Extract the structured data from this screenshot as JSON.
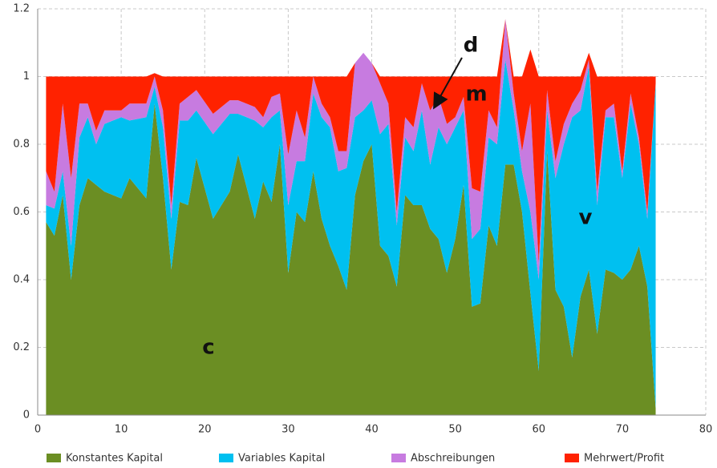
{
  "chart_data": {
    "type": "stacked_area",
    "x": [
      1,
      2,
      3,
      4,
      5,
      6,
      7,
      8,
      10,
      11,
      13,
      14,
      15,
      16,
      17,
      18,
      19,
      21,
      23,
      24,
      26,
      27,
      28,
      29,
      30,
      31,
      32,
      33,
      34,
      35,
      36,
      37,
      38,
      39,
      40,
      41,
      42,
      43,
      44,
      45,
      46,
      47,
      48,
      49,
      50,
      51,
      52,
      53,
      54,
      55,
      56,
      57,
      58,
      59,
      60,
      61,
      62,
      63,
      64,
      65,
      66,
      67,
      68,
      69,
      70,
      71,
      72,
      73,
      74
    ],
    "series": [
      {
        "name": "Konstantes Kapital",
        "color": "#6b8e23",
        "values": [
          0.57,
          0.53,
          0.65,
          0.4,
          0.62,
          0.7,
          0.68,
          0.66,
          0.64,
          0.7,
          0.64,
          0.92,
          0.7,
          0.43,
          0.63,
          0.62,
          0.76,
          0.58,
          0.66,
          0.77,
          0.58,
          0.69,
          0.63,
          0.8,
          0.42,
          0.6,
          0.57,
          0.72,
          0.58,
          0.5,
          0.44,
          0.37,
          0.65,
          0.75,
          0.8,
          0.5,
          0.47,
          0.38,
          0.65,
          0.62,
          0.62,
          0.55,
          0.52,
          0.42,
          0.52,
          0.68,
          0.32,
          0.33,
          0.56,
          0.5,
          0.74,
          0.74,
          0.6,
          0.36,
          0.13,
          0.78,
          0.37,
          0.32,
          0.17,
          0.35,
          0.43,
          0.24,
          0.43,
          0.42,
          0.4,
          0.43,
          0.5,
          0.38,
          0.02
        ]
      },
      {
        "name": "Variables Kapital",
        "color": "#00c0f0",
        "values": [
          0.05,
          0.08,
          0.07,
          0.1,
          0.2,
          0.18,
          0.12,
          0.2,
          0.24,
          0.17,
          0.24,
          0.05,
          0.15,
          0.15,
          0.24,
          0.25,
          0.14,
          0.25,
          0.23,
          0.12,
          0.29,
          0.16,
          0.25,
          0.1,
          0.2,
          0.15,
          0.18,
          0.23,
          0.3,
          0.35,
          0.28,
          0.36,
          0.23,
          0.15,
          0.13,
          0.33,
          0.39,
          0.18,
          0.17,
          0.16,
          0.28,
          0.19,
          0.33,
          0.38,
          0.33,
          0.22,
          0.2,
          0.22,
          0.26,
          0.3,
          0.31,
          0.16,
          0.12,
          0.24,
          0.27,
          0.12,
          0.33,
          0.48,
          0.71,
          0.55,
          0.6,
          0.38,
          0.45,
          0.46,
          0.3,
          0.49,
          0.3,
          0.2,
          0.96
        ]
      },
      {
        "name": "Abschreibungen",
        "color": "#c77be0",
        "values": [
          0.1,
          0.05,
          0.2,
          0.2,
          0.1,
          0.04,
          0.04,
          0.04,
          0.02,
          0.05,
          0.04,
          0.03,
          0.05,
          0.04,
          0.05,
          0.07,
          0.06,
          0.06,
          0.04,
          0.04,
          0.04,
          0.03,
          0.06,
          0.05,
          0.15,
          0.15,
          0.07,
          0.05,
          0.04,
          0.03,
          0.06,
          0.05,
          0.16,
          0.17,
          0.11,
          0.15,
          0.06,
          0.04,
          0.06,
          0.07,
          0.08,
          0.16,
          0.09,
          0.06,
          0.03,
          0.04,
          0.15,
          0.11,
          0.08,
          0.05,
          0.12,
          0.05,
          0.06,
          0.32,
          0.05,
          0.06,
          0.05,
          0.06,
          0.04,
          0.06,
          0.02,
          0.04,
          0.02,
          0.04,
          0.02,
          0.03,
          0.02,
          0.02,
          0
        ]
      },
      {
        "name": "Mehrwert/Profit",
        "color": "#ff2200",
        "values": [
          0.28,
          0.34,
          0.08,
          0.3,
          0.08,
          0.08,
          0.16,
          0.1,
          0.1,
          0.08,
          0.08,
          0.01,
          0.1,
          0.38,
          0.08,
          0.06,
          0.04,
          0.11,
          0.07,
          0.07,
          0.09,
          0.12,
          0.06,
          0.05,
          0.23,
          0.1,
          0.18,
          0,
          0.08,
          0.12,
          0.22,
          0.22,
          0,
          0,
          0,
          0.02,
          0.08,
          0.4,
          0.12,
          0.15,
          0.02,
          0.1,
          0.06,
          0.14,
          0.12,
          0.06,
          0.33,
          0.34,
          0.1,
          0.15,
          0,
          0.05,
          0.22,
          0.16,
          0.55,
          0.04,
          0.25,
          0.14,
          0.08,
          0.04,
          0.02,
          0.34,
          0.1,
          0.08,
          0.28,
          0.05,
          0.18,
          0.4,
          0.02
        ]
      }
    ],
    "xlim": [
      0,
      80
    ],
    "xticks": [
      0,
      10,
      20,
      30,
      40,
      50,
      60,
      70,
      80
    ],
    "ylim": [
      0,
      1.2
    ],
    "yticks": [
      0,
      0.2,
      0.4,
      0.6,
      0.8,
      1,
      1.2
    ],
    "grid": true,
    "legend": "bottom",
    "annotations": [
      {
        "text": "d"
      },
      {
        "text": "m"
      },
      {
        "text": "v"
      },
      {
        "text": "c"
      }
    ]
  }
}
